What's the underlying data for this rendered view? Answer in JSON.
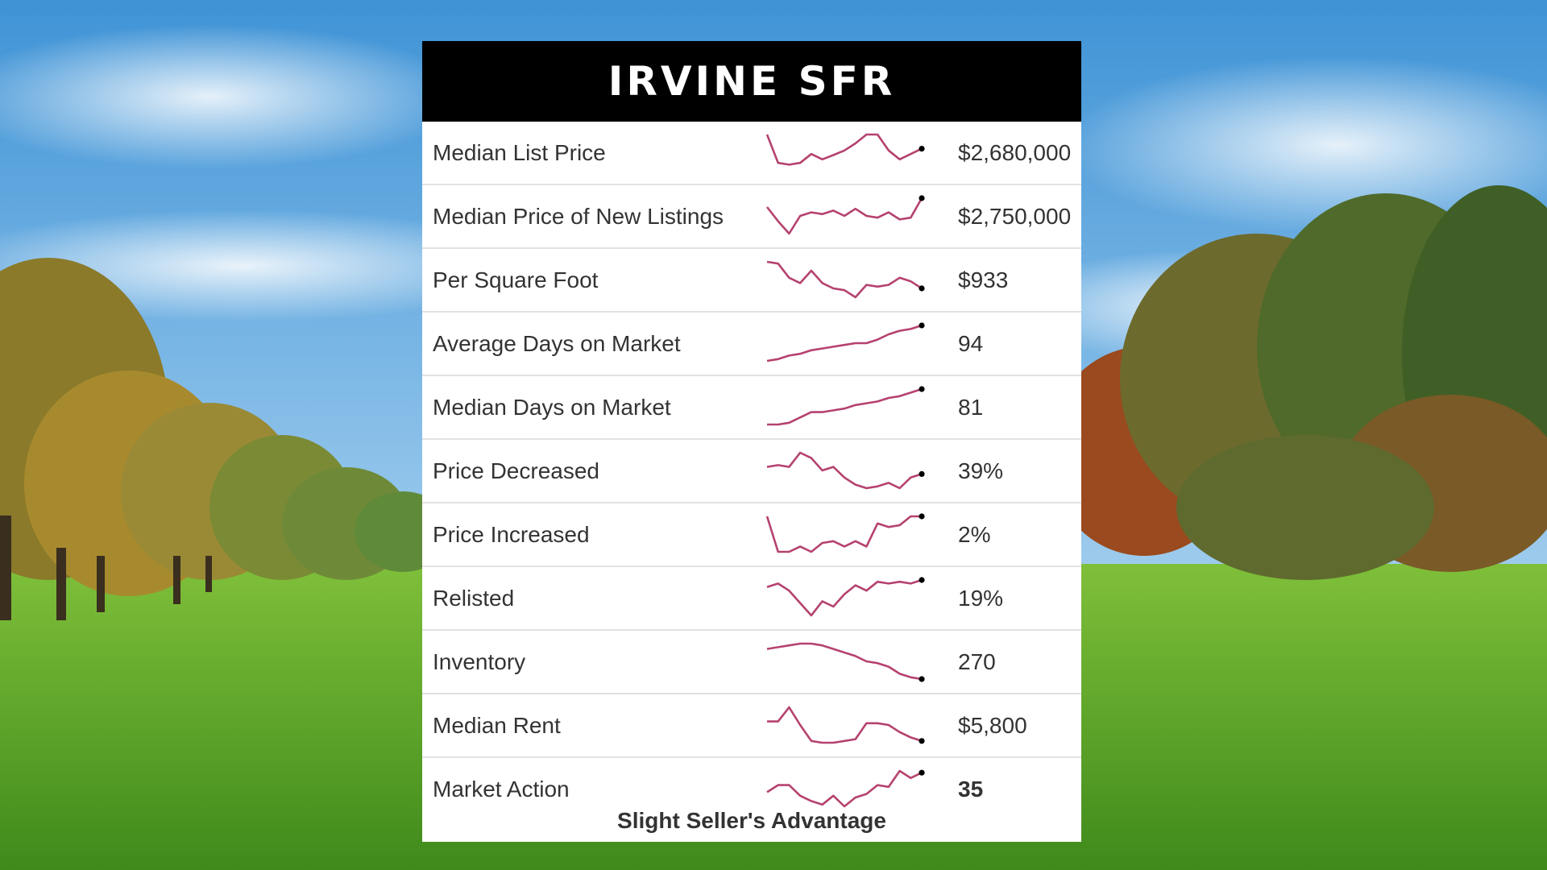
{
  "title": "IRVINE SFR",
  "spark_color": "#b5426f",
  "dot_color": "#000000",
  "rows": [
    {
      "label": "Median List Price",
      "value": "$2,680,000",
      "bold": false,
      "trend": [
        1.0,
        0.2,
        0.15,
        0.2,
        0.45,
        0.3,
        0.42,
        0.55,
        0.75,
        1.0,
        1.0,
        0.55,
        0.3,
        0.45,
        0.6
      ]
    },
    {
      "label": "Median Price of New Listings",
      "value": "$2,750,000",
      "bold": false,
      "trend": [
        0.75,
        0.35,
        0.0,
        0.5,
        0.6,
        0.55,
        0.65,
        0.5,
        0.7,
        0.5,
        0.45,
        0.6,
        0.4,
        0.45,
        1.0
      ]
    },
    {
      "label": "Per Square Foot",
      "value": "$933",
      "bold": false,
      "trend": [
        1.0,
        0.95,
        0.55,
        0.4,
        0.75,
        0.4,
        0.25,
        0.2,
        0.0,
        0.35,
        0.3,
        0.35,
        0.55,
        0.45,
        0.25
      ]
    },
    {
      "label": "Average Days on Market",
      "value": "94",
      "bold": false,
      "trend": [
        0.0,
        0.05,
        0.15,
        0.2,
        0.3,
        0.35,
        0.4,
        0.45,
        0.5,
        0.5,
        0.6,
        0.75,
        0.85,
        0.9,
        1.0
      ]
    },
    {
      "label": "Median Days on Market",
      "value": "81",
      "bold": false,
      "trend": [
        0.0,
        0.0,
        0.05,
        0.2,
        0.35,
        0.35,
        0.4,
        0.45,
        0.55,
        0.6,
        0.65,
        0.75,
        0.8,
        0.9,
        1.0
      ]
    },
    {
      "label": "Price Decreased",
      "value": "39%",
      "bold": false,
      "trend": [
        0.6,
        0.65,
        0.6,
        1.0,
        0.85,
        0.5,
        0.6,
        0.3,
        0.1,
        0.0,
        0.05,
        0.15,
        0.0,
        0.3,
        0.4
      ]
    },
    {
      "label": "Price Increased",
      "value": "2%",
      "bold": false,
      "trend": [
        1.0,
        0.0,
        0.0,
        0.15,
        0.0,
        0.25,
        0.3,
        0.15,
        0.3,
        0.15,
        0.8,
        0.7,
        0.75,
        1.0,
        1.0
      ]
    },
    {
      "label": "Relisted",
      "value": "19%",
      "bold": false,
      "trend": [
        0.8,
        0.9,
        0.7,
        0.35,
        0.0,
        0.4,
        0.25,
        0.6,
        0.85,
        0.7,
        0.95,
        0.9,
        0.95,
        0.9,
        1.0
      ]
    },
    {
      "label": "Inventory",
      "value": "270",
      "bold": false,
      "trend": [
        0.85,
        0.9,
        0.95,
        1.0,
        1.0,
        0.95,
        0.85,
        0.75,
        0.65,
        0.5,
        0.45,
        0.35,
        0.15,
        0.05,
        0.0
      ]
    },
    {
      "label": "Median Rent",
      "value": "$5,800",
      "bold": false,
      "trend": [
        0.6,
        0.6,
        1.0,
        0.5,
        0.05,
        0.0,
        0.0,
        0.05,
        0.1,
        0.55,
        0.55,
        0.5,
        0.3,
        0.15,
        0.05
      ]
    },
    {
      "label": "Market Action",
      "value": "35",
      "bold": true,
      "trend": [
        0.4,
        0.6,
        0.6,
        0.3,
        0.15,
        0.05,
        0.3,
        0.0,
        0.25,
        0.35,
        0.6,
        0.55,
        1.0,
        0.8,
        0.95
      ]
    }
  ],
  "footer": "Slight Seller's Advantage"
}
